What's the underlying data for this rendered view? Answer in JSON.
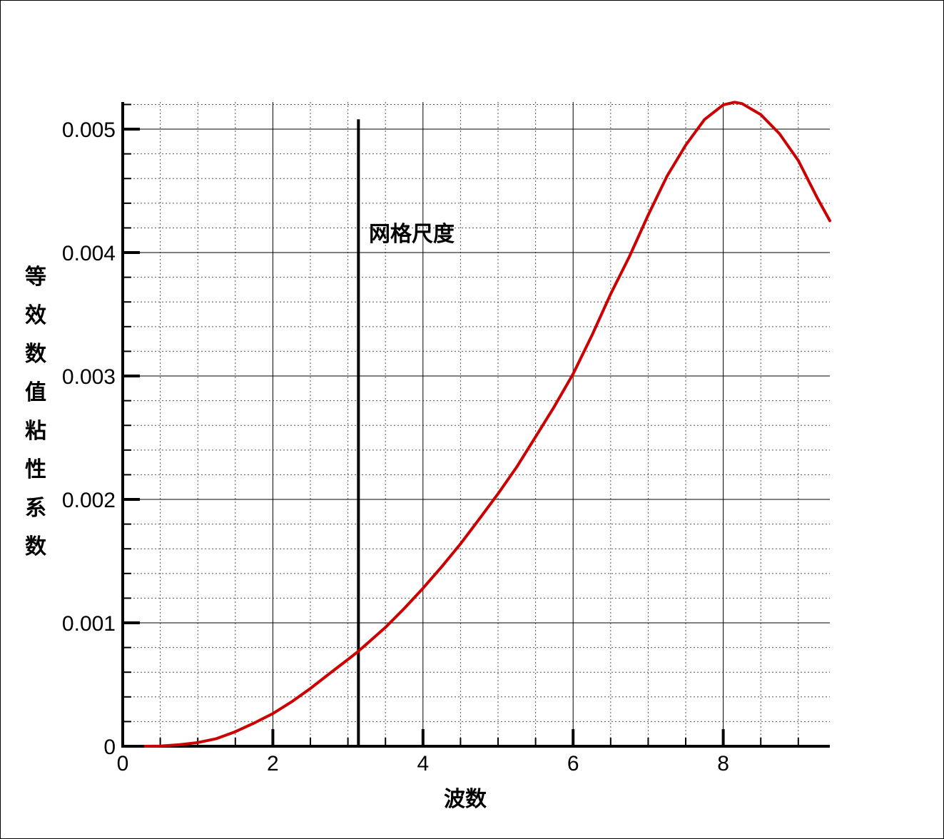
{
  "chart_data": {
    "type": "line",
    "xlabel": "波数",
    "ylabel": "等效数值粘性系数",
    "xlim": [
      0,
      9.42
    ],
    "ylim": [
      0,
      0.00522
    ],
    "x_ticks": [
      {
        "value": 0,
        "label": "0"
      },
      {
        "value": 2,
        "label": "2"
      },
      {
        "value": 4,
        "label": "4"
      },
      {
        "value": 6,
        "label": "6"
      },
      {
        "value": 8,
        "label": "8"
      }
    ],
    "y_ticks": [
      {
        "value": 0,
        "label": "0"
      },
      {
        "value": 0.001,
        "label": "0.001"
      },
      {
        "value": 0.002,
        "label": "0.002"
      },
      {
        "value": 0.003,
        "label": "0.003"
      },
      {
        "value": 0.004,
        "label": "0.004"
      },
      {
        "value": 0.005,
        "label": "0.005"
      }
    ],
    "grid": true,
    "series": [
      {
        "color": "#cc0000",
        "x": [
          0.3,
          0.5,
          0.75,
          1.0,
          1.25,
          1.5,
          1.75,
          2.0,
          2.25,
          2.5,
          2.75,
          3.0,
          3.14,
          3.5,
          3.75,
          4.0,
          4.25,
          4.5,
          4.75,
          5.0,
          5.25,
          5.5,
          5.75,
          6.0,
          6.25,
          6.5,
          6.75,
          7.0,
          7.25,
          7.5,
          7.75,
          8.0,
          8.15,
          8.25,
          8.5,
          8.75,
          9.0,
          9.25,
          9.42
        ],
        "y": [
          0.0,
          2e-06,
          1.2e-05,
          3e-05,
          6.2e-05,
          0.000118,
          0.000188,
          0.000265,
          0.00036,
          0.000468,
          0.000587,
          0.000703,
          0.00077,
          0.000963,
          0.001116,
          0.00128,
          0.001455,
          0.00164,
          0.001841,
          0.002046,
          0.002264,
          0.002507,
          0.002753,
          0.003017,
          0.003328,
          0.003664,
          0.003968,
          0.004304,
          0.004618,
          0.00487,
          0.005078,
          0.005197,
          0.005218,
          0.005207,
          0.005118,
          0.004963,
          0.004746,
          0.004446,
          0.004258
        ]
      }
    ],
    "annotations": [
      {
        "type": "vline",
        "x": 3.14,
        "label": "网格尺度",
        "y_top": 0.00508,
        "color": "#000000"
      }
    ]
  }
}
